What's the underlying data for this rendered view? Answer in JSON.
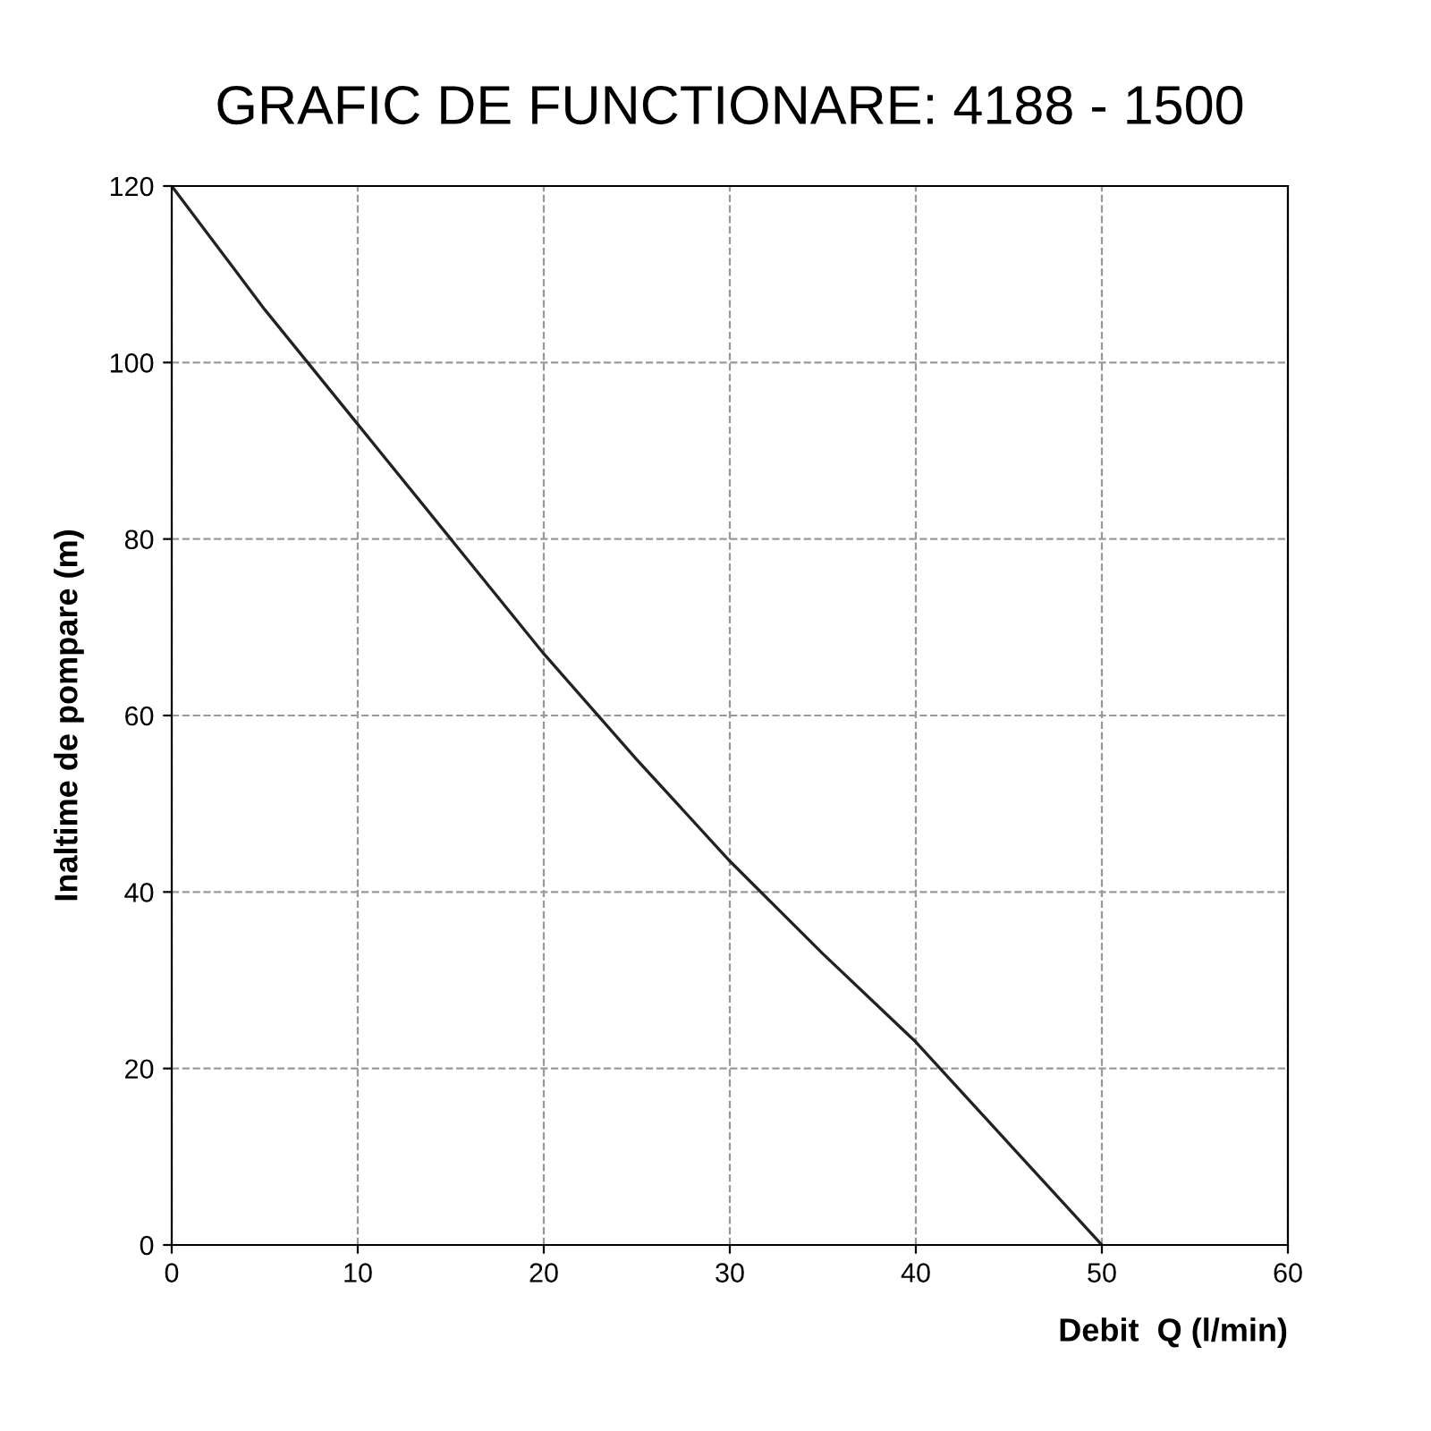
{
  "chart_data": {
    "type": "line",
    "title": "GRAFIC DE FUNCTIONARE: 4188 - 1500",
    "xlabel": "Debit  Q (l/min)",
    "ylabel": "Inaltime de pompare (m)",
    "x": [
      0,
      5,
      10,
      15,
      20,
      25,
      30,
      35,
      40,
      45,
      50
    ],
    "series": [
      {
        "color": "#222222",
        "values": [
          120,
          106,
          93,
          80,
          67,
          55,
          43.5,
          33,
          23,
          11.5,
          0
        ]
      }
    ],
    "xlim": [
      0,
      60
    ],
    "ylim": [
      0,
      120
    ],
    "xticks": [
      0,
      10,
      20,
      30,
      40,
      50,
      60
    ],
    "yticks": [
      0,
      20,
      40,
      60,
      80,
      100,
      120
    ],
    "grid": true,
    "line_style": "solid",
    "marker": "none"
  }
}
